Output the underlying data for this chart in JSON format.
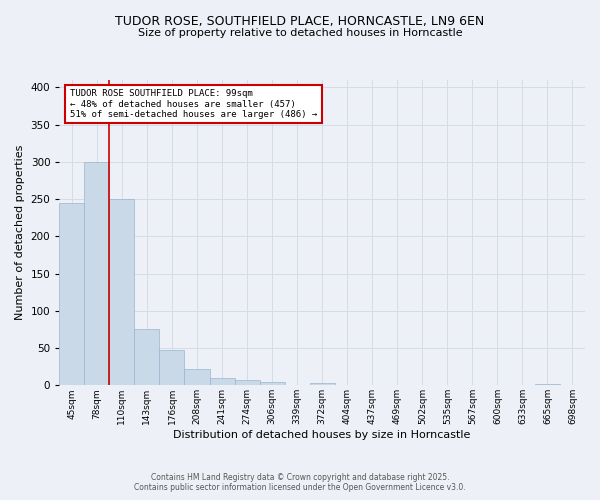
{
  "title_line1": "TUDOR ROSE, SOUTHFIELD PLACE, HORNCASTLE, LN9 6EN",
  "title_line2": "Size of property relative to detached houses in Horncastle",
  "xlabel": "Distribution of detached houses by size in Horncastle",
  "ylabel": "Number of detached properties",
  "bar_labels": [
    "45sqm",
    "78sqm",
    "110sqm",
    "143sqm",
    "176sqm",
    "208sqm",
    "241sqm",
    "274sqm",
    "306sqm",
    "339sqm",
    "372sqm",
    "404sqm",
    "437sqm",
    "469sqm",
    "502sqm",
    "535sqm",
    "567sqm",
    "600sqm",
    "633sqm",
    "665sqm",
    "698sqm"
  ],
  "bar_values": [
    245,
    300,
    250,
    75,
    47,
    22,
    10,
    7,
    4,
    0,
    3,
    0,
    0,
    0,
    0,
    0,
    0,
    0,
    0,
    2,
    0
  ],
  "bar_color": "#cad9e8",
  "bar_edge_color": "#9ab5cc",
  "grid_color": "#d4dce8",
  "background_color": "#edf1f7",
  "vline_x_index": 1.5,
  "vline_color": "#cc0000",
  "annotation_text": "TUDOR ROSE SOUTHFIELD PLACE: 99sqm\n← 48% of detached houses are smaller (457)\n51% of semi-detached houses are larger (486) →",
  "annotation_box_color": "#ffffff",
  "annotation_border_color": "#cc0000",
  "ylim": [
    0,
    410
  ],
  "yticks": [
    0,
    50,
    100,
    150,
    200,
    250,
    300,
    350,
    400
  ],
  "footer_line1": "Contains HM Land Registry data © Crown copyright and database right 2025.",
  "footer_line2": "Contains public sector information licensed under the Open Government Licence v3.0."
}
